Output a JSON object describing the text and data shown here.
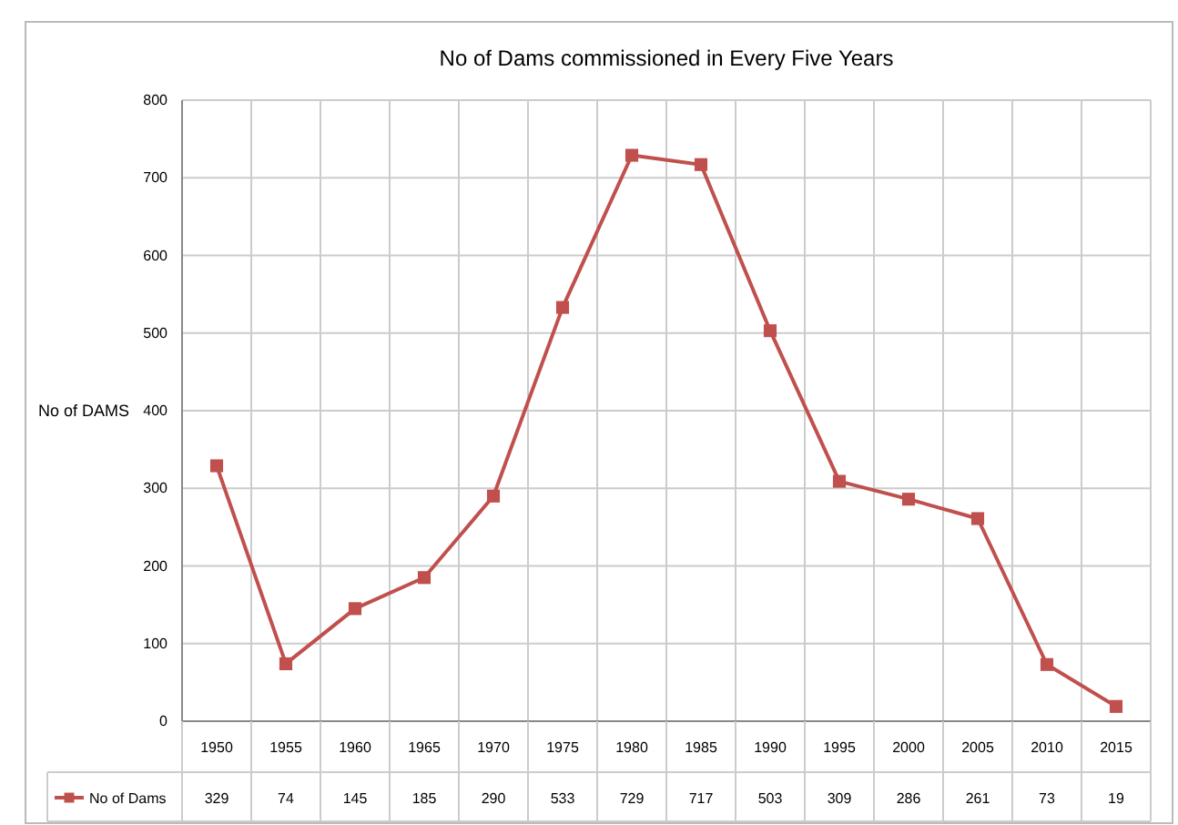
{
  "chart_data": {
    "type": "line",
    "title": "No of Dams commissioned in Every Five Years",
    "ylabel": "No of DAMS",
    "categories": [
      "1950",
      "1955",
      "1960",
      "1965",
      "1970",
      "1975",
      "1980",
      "1985",
      "1990",
      "1995",
      "2000",
      "2005",
      "2010",
      "2015"
    ],
    "series": [
      {
        "name": "No of Dams",
        "color": "#c0504d",
        "values": [
          329,
          74,
          145,
          185,
          290,
          533,
          729,
          717,
          503,
          309,
          286,
          261,
          73,
          19
        ]
      }
    ],
    "ylim": [
      0,
      800
    ],
    "yticks": [
      0,
      100,
      200,
      300,
      400,
      500,
      600,
      700,
      800
    ],
    "grid": true,
    "marker": "square",
    "legend": "bottom left",
    "data_labels": true
  }
}
